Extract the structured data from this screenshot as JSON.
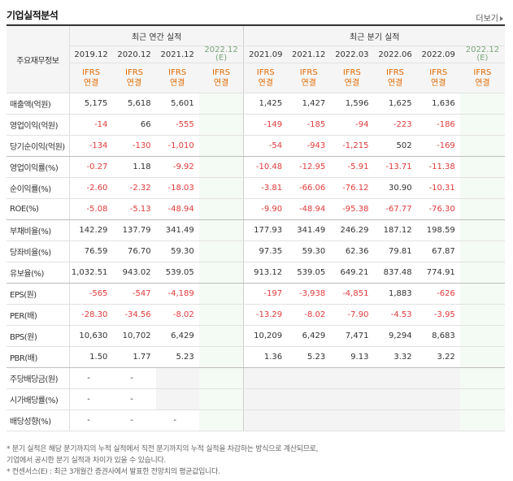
{
  "title": "기업실적분석",
  "more_label": "더보기",
  "header": {
    "row_label": "주요재무정보",
    "annual_group": "최근 연간 실적",
    "quarter_group": "최근 분기 실적",
    "annual_periods": [
      "2019.12",
      "2020.12",
      "2021.12",
      "2022.12 (E)"
    ],
    "quarter_periods": [
      "2021.09",
      "2021.12",
      "2022.03",
      "2022.06",
      "2022.09",
      "2022.12 (E)"
    ],
    "basis_line1": "IFRS",
    "basis_line2": "연결"
  },
  "rows": [
    {
      "label": "매출액(억원)",
      "values": [
        "5,175",
        "5,618",
        "5,601",
        "",
        "1,425",
        "1,427",
        "1,596",
        "1,625",
        "1,636",
        ""
      ]
    },
    {
      "label": "영업이익(억원)",
      "values": [
        "-14",
        "66",
        "-555",
        "",
        "-149",
        "-185",
        "-94",
        "-223",
        "-186",
        ""
      ]
    },
    {
      "label": "당기순이익(억원)",
      "values": [
        "-134",
        "-130",
        "-1,010",
        "",
        "-54",
        "-943",
        "-1,215",
        "502",
        "-169",
        ""
      ]
    },
    {
      "label": "영업이익률(%)",
      "values": [
        "-0.27",
        "1.18",
        "-9.92",
        "",
        "-10.48",
        "-12.95",
        "-5.91",
        "-13.71",
        "-11.38",
        ""
      ]
    },
    {
      "label": "순이익률(%)",
      "values": [
        "-2.60",
        "-2.32",
        "-18.03",
        "",
        "-3.81",
        "-66.06",
        "-76.12",
        "30.90",
        "-10.31",
        ""
      ]
    },
    {
      "label": "ROE(%)",
      "values": [
        "-5.08",
        "-5.13",
        "-48.94",
        "",
        "-9.90",
        "-48.94",
        "-95.38",
        "-67.77",
        "-76.30",
        ""
      ]
    },
    {
      "label": "부채비율(%)",
      "values": [
        "142.29",
        "137.79",
        "341.49",
        "",
        "177.93",
        "341.49",
        "246.29",
        "187.12",
        "198.59",
        ""
      ]
    },
    {
      "label": "당좌비율(%)",
      "values": [
        "76.59",
        "76.70",
        "59.30",
        "",
        "97.35",
        "59.30",
        "62.36",
        "79.81",
        "67.87",
        ""
      ]
    },
    {
      "label": "유보율(%)",
      "values": [
        "1,032.51",
        "943.02",
        "539.05",
        "",
        "913.12",
        "539.05",
        "649.21",
        "837.48",
        "774.91",
        ""
      ]
    },
    {
      "label": "EPS(원)",
      "values": [
        "-565",
        "-547",
        "-4,189",
        "",
        "-197",
        "-3,938",
        "-4,851",
        "1,883",
        "-626",
        ""
      ]
    },
    {
      "label": "PER(배)",
      "values": [
        "-28.30",
        "-34.56",
        "-8.02",
        "",
        "-13.29",
        "-8.02",
        "-7.90",
        "-4.53",
        "-3.95",
        ""
      ]
    },
    {
      "label": "BPS(원)",
      "values": [
        "10,630",
        "10,702",
        "6,429",
        "",
        "10,209",
        "6,429",
        "7,471",
        "9,294",
        "8,683",
        ""
      ]
    },
    {
      "label": "PBR(배)",
      "values": [
        "1.50",
        "1.77",
        "5.23",
        "",
        "1.36",
        "5.23",
        "9.13",
        "3.32",
        "3.22",
        ""
      ]
    },
    {
      "label": "주당배당금(원)",
      "values": [
        "-",
        "-",
        "",
        "",
        "",
        "",
        "",
        "",
        "",
        ""
      ]
    },
    {
      "label": "시가배당률(%)",
      "values": [
        "-",
        "-",
        "",
        "",
        "",
        "",
        "",
        "",
        "",
        ""
      ]
    },
    {
      "label": "배당성향(%)",
      "values": [
        "-",
        "-",
        "-",
        "",
        "",
        "",
        "",
        "",
        "",
        ""
      ]
    }
  ],
  "notes": [
    "* 분기 실적은 해당 분기까지의 누적 실적에서 직전 분기까지의 누적 실적을 차감하는 방식으로 계산되므로,",
    "  기업에서 공시한 분기 실적과 차이가 있을 수 있습니다.",
    "* 컨센서스(E) : 최근 3개월간 증권사에서 발표한 전망치의 평균값입니다."
  ],
  "colors": {
    "negative": "#e03a3a",
    "basis": "#e06a00",
    "estimate": "#7aa57a"
  }
}
